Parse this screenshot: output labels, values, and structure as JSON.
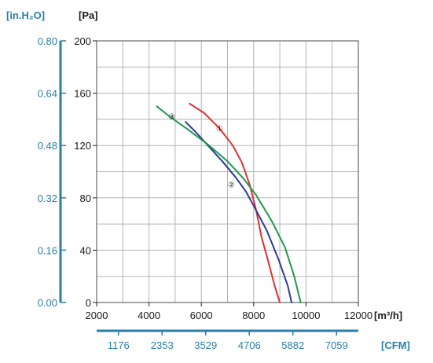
{
  "chart_data": {
    "type": "line",
    "x_unit_main": "[m³/h]",
    "x_unit_secondary": "[CFM]",
    "y_unit_main": "[Pa]",
    "y_unit_secondary": "[in.H₂O]",
    "xlim": [
      2000,
      12000
    ],
    "ylim": [
      0,
      200
    ],
    "grid": true,
    "x_ticks_main": [
      "2000",
      "4000",
      "6000",
      "8000",
      "10000",
      "12000"
    ],
    "x_ticks_secondary": [
      "1176",
      "2353",
      "3529",
      "4706",
      "5882",
      "7059"
    ],
    "y_ticks_main": [
      "0",
      "40",
      "80",
      "120",
      "160",
      "200"
    ],
    "y_ticks_secondary": [
      "0.00",
      "0.16",
      "0.32",
      "0.48",
      "0.64",
      "0.80"
    ],
    "series": [
      {
        "name": "1",
        "color": "#e03030",
        "x": [
          5550,
          6100,
          6700,
          7200,
          7550,
          7850,
          8100,
          8300,
          8550,
          8800,
          9000
        ],
        "y": [
          152,
          145,
          133,
          120,
          107,
          90,
          70,
          50,
          32,
          13,
          0
        ]
      },
      {
        "name": "2",
        "color": "#2a3c96",
        "x": [
          5400,
          5800,
          6300,
          6800,
          7300,
          7700,
          8000,
          8500,
          8950,
          9300,
          9450
        ],
        "y": [
          138,
          130,
          119,
          108,
          96,
          85,
          74,
          55,
          33,
          13,
          0
        ]
      },
      {
        "name": "3",
        "color": "#1f9a4a",
        "x": [
          4300,
          4800,
          5500,
          6300,
          7000,
          7600,
          8100,
          8700,
          9200,
          9550,
          9800
        ],
        "y": [
          150,
          142,
          132,
          120,
          108,
          95,
          82,
          62,
          42,
          20,
          0
        ]
      }
    ],
    "labels": [
      {
        "text": "①",
        "x": 6700,
        "y": 134
      },
      {
        "text": "②",
        "x": 7150,
        "y": 91
      },
      {
        "text": "③",
        "x": 4870,
        "y": 143
      }
    ]
  }
}
